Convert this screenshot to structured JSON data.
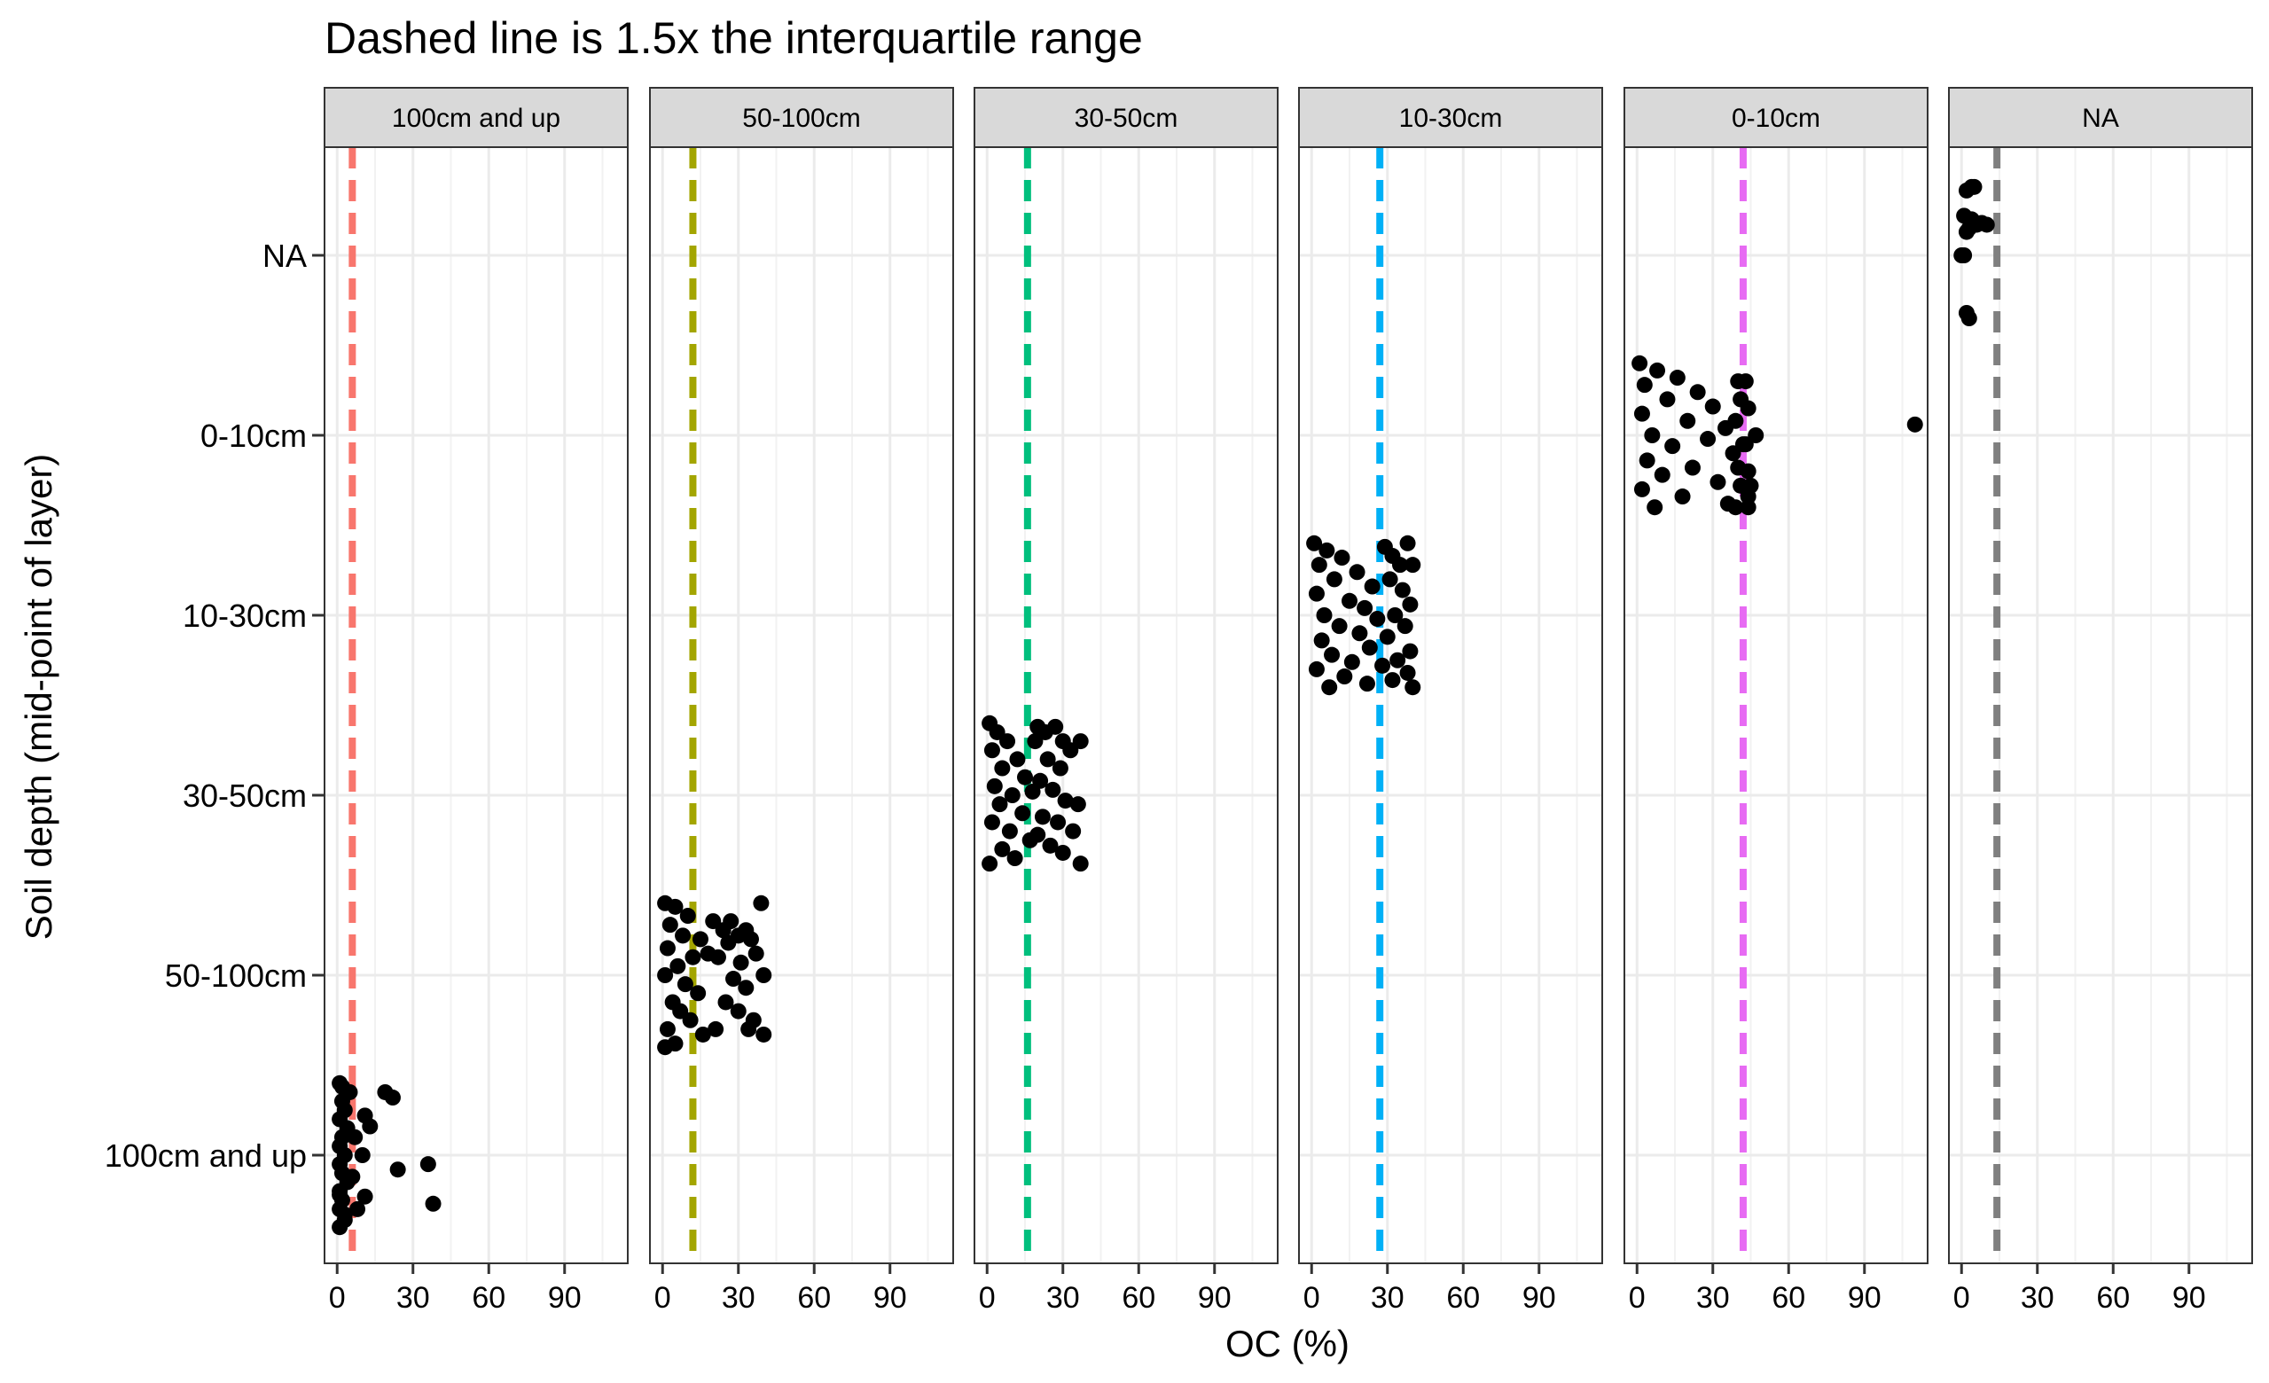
{
  "chart_data": {
    "type": "scatter",
    "title": "Dashed line is 1.5x the interquartile range",
    "xlabel": "OC (%)",
    "ylabel": "Soil depth (mid-point of layer)",
    "y_categories": [
      "100cm and up",
      "50-100cm",
      "30-50cm",
      "10-30cm",
      "0-10cm",
      "NA"
    ],
    "x_ticks": [
      0,
      30,
      60,
      90
    ],
    "xlim": [
      -5,
      115
    ],
    "grid": true,
    "legend": "none",
    "panels": [
      {
        "facet": "100cm and up",
        "threshold": 6,
        "color": "#F8766D",
        "points": [
          [
            1,
            -0.4
          ],
          [
            3,
            -0.36
          ],
          [
            1,
            -0.3
          ],
          [
            2,
            -0.25
          ],
          [
            1,
            -0.2
          ],
          [
            4,
            -0.15
          ],
          [
            2,
            -0.1
          ],
          [
            1,
            -0.05
          ],
          [
            3,
            0
          ],
          [
            1,
            0.05
          ],
          [
            2,
            0.1
          ],
          [
            4,
            0.15
          ],
          [
            1,
            0.2
          ],
          [
            3,
            0.25
          ],
          [
            2,
            0.3
          ],
          [
            5,
            0.35
          ],
          [
            1,
            0.4
          ],
          [
            2,
            0.38
          ],
          [
            3,
            -0.33
          ],
          [
            1,
            -0.22
          ],
          [
            11,
            0.22
          ],
          [
            19,
            0.35
          ],
          [
            22,
            0.32
          ],
          [
            13,
            0.16
          ],
          [
            10,
            0
          ],
          [
            24,
            -0.08
          ],
          [
            36,
            -0.05
          ],
          [
            38,
            -0.27
          ],
          [
            11,
            -0.23
          ],
          [
            6,
            -0.12
          ],
          [
            7,
            0.1
          ],
          [
            8,
            -0.3
          ]
        ]
      },
      {
        "facet": "50-100cm",
        "threshold": 12,
        "color": "#A3A500",
        "points": [
          [
            1,
            0.4
          ],
          [
            5,
            0.38
          ],
          [
            10,
            0.33
          ],
          [
            3,
            0.28
          ],
          [
            8,
            0.22
          ],
          [
            15,
            0.2
          ],
          [
            2,
            0.15
          ],
          [
            12,
            0.1
          ],
          [
            6,
            0.05
          ],
          [
            18,
            0.12
          ],
          [
            1,
            0
          ],
          [
            9,
            -0.05
          ],
          [
            14,
            -0.1
          ],
          [
            4,
            -0.15
          ],
          [
            7,
            -0.2
          ],
          [
            11,
            -0.25
          ],
          [
            2,
            -0.3
          ],
          [
            16,
            -0.33
          ],
          [
            5,
            -0.38
          ],
          [
            1,
            -0.4
          ],
          [
            20,
            0.3
          ],
          [
            24,
            0.25
          ],
          [
            27,
            0.3
          ],
          [
            30,
            0.22
          ],
          [
            33,
            0.25
          ],
          [
            26,
            0.18
          ],
          [
            22,
            0.1
          ],
          [
            35,
            0.2
          ],
          [
            39,
            0.4
          ],
          [
            31,
            0.07
          ],
          [
            37,
            0.12
          ],
          [
            40,
            0
          ],
          [
            28,
            -0.02
          ],
          [
            33,
            -0.07
          ],
          [
            25,
            -0.15
          ],
          [
            30,
            -0.2
          ],
          [
            36,
            -0.25
          ],
          [
            40,
            -0.33
          ],
          [
            21,
            -0.3
          ],
          [
            34,
            -0.3
          ]
        ]
      },
      {
        "facet": "30-50cm",
        "threshold": 16,
        "color": "#00BF7D",
        "points": [
          [
            1,
            0.4
          ],
          [
            4,
            0.35
          ],
          [
            8,
            0.3
          ],
          [
            2,
            0.25
          ],
          [
            12,
            0.2
          ],
          [
            6,
            0.15
          ],
          [
            15,
            0.1
          ],
          [
            3,
            0.05
          ],
          [
            10,
            0
          ],
          [
            18,
            0.02
          ],
          [
            5,
            -0.05
          ],
          [
            14,
            -0.1
          ],
          [
            2,
            -0.15
          ],
          [
            9,
            -0.2
          ],
          [
            17,
            -0.25
          ],
          [
            6,
            -0.3
          ],
          [
            11,
            -0.35
          ],
          [
            1,
            -0.38
          ],
          [
            19,
            0.3
          ],
          [
            20,
            0.38
          ],
          [
            23,
            0.35
          ],
          [
            27,
            0.38
          ],
          [
            30,
            0.3
          ],
          [
            33,
            0.25
          ],
          [
            37,
            0.3
          ],
          [
            24,
            0.2
          ],
          [
            29,
            0.15
          ],
          [
            21,
            0.08
          ],
          [
            26,
            0.03
          ],
          [
            36,
            -0.05
          ],
          [
            31,
            -0.03
          ],
          [
            22,
            -0.12
          ],
          [
            28,
            -0.15
          ],
          [
            34,
            -0.2
          ],
          [
            25,
            -0.28
          ],
          [
            30,
            -0.32
          ],
          [
            37,
            -0.38
          ],
          [
            20,
            -0.22
          ]
        ]
      },
      {
        "facet": "10-30cm",
        "threshold": 27,
        "color": "#00B0F6",
        "points": [
          [
            1,
            0.4
          ],
          [
            6,
            0.36
          ],
          [
            12,
            0.32
          ],
          [
            3,
            0.28
          ],
          [
            18,
            0.24
          ],
          [
            9,
            0.2
          ],
          [
            24,
            0.16
          ],
          [
            2,
            0.12
          ],
          [
            15,
            0.08
          ],
          [
            21,
            0.04
          ],
          [
            5,
            0
          ],
          [
            26,
            -0.02
          ],
          [
            11,
            -0.06
          ],
          [
            19,
            -0.1
          ],
          [
            4,
            -0.14
          ],
          [
            23,
            -0.18
          ],
          [
            8,
            -0.22
          ],
          [
            16,
            -0.26
          ],
          [
            2,
            -0.3
          ],
          [
            13,
            -0.34
          ],
          [
            22,
            -0.38
          ],
          [
            7,
            -0.4
          ],
          [
            29,
            0.38
          ],
          [
            32,
            0.33
          ],
          [
            35,
            0.28
          ],
          [
            38,
            0.4
          ],
          [
            40,
            0.28
          ],
          [
            31,
            0.2
          ],
          [
            36,
            0.14
          ],
          [
            39,
            0.06
          ],
          [
            33,
            0
          ],
          [
            37,
            -0.06
          ],
          [
            30,
            -0.12
          ],
          [
            39,
            -0.2
          ],
          [
            34,
            -0.25
          ],
          [
            38,
            -0.32
          ],
          [
            32,
            -0.36
          ],
          [
            40,
            -0.4
          ],
          [
            28,
            -0.28
          ]
        ]
      },
      {
        "facet": "0-10cm",
        "threshold": 42,
        "color": "#E76BF3",
        "points": [
          [
            1,
            0.4
          ],
          [
            8,
            0.36
          ],
          [
            16,
            0.32
          ],
          [
            3,
            0.28
          ],
          [
            24,
            0.24
          ],
          [
            12,
            0.2
          ],
          [
            30,
            0.16
          ],
          [
            2,
            0.12
          ],
          [
            20,
            0.08
          ],
          [
            35,
            0.04
          ],
          [
            6,
            0
          ],
          [
            28,
            -0.02
          ],
          [
            14,
            -0.06
          ],
          [
            38,
            -0.1
          ],
          [
            4,
            -0.14
          ],
          [
            22,
            -0.18
          ],
          [
            10,
            -0.22
          ],
          [
            32,
            -0.26
          ],
          [
            2,
            -0.3
          ],
          [
            18,
            -0.34
          ],
          [
            36,
            -0.38
          ],
          [
            7,
            -0.4
          ],
          [
            40,
            0.3
          ],
          [
            41,
            0.2
          ],
          [
            39,
            0.08
          ],
          [
            42,
            -0.05
          ],
          [
            40,
            -0.18
          ],
          [
            41,
            -0.28
          ],
          [
            39,
            -0.4
          ],
          [
            43,
            0.3
          ],
          [
            44,
            0.15
          ],
          [
            43,
            -0.05
          ],
          [
            44,
            -0.2
          ],
          [
            45,
            -0.28
          ],
          [
            44,
            -0.4
          ],
          [
            47,
            0
          ],
          [
            44,
            -0.34
          ],
          [
            110,
            0.06
          ]
        ]
      },
      {
        "facet": "NA",
        "threshold": 14,
        "color": "#7F7F7F",
        "points": [
          [
            1,
            0.22
          ],
          [
            2,
            0.36
          ],
          [
            4,
            0.38
          ],
          [
            5,
            0.38
          ],
          [
            4,
            0.2
          ],
          [
            3,
            0.15
          ],
          [
            8,
            0.18
          ],
          [
            10,
            0.17
          ],
          [
            6,
            0.17
          ],
          [
            1,
            0
          ],
          [
            2,
            0.13
          ],
          [
            0,
            0
          ],
          [
            2,
            -0.32
          ],
          [
            3,
            -0.35
          ]
        ]
      }
    ]
  }
}
